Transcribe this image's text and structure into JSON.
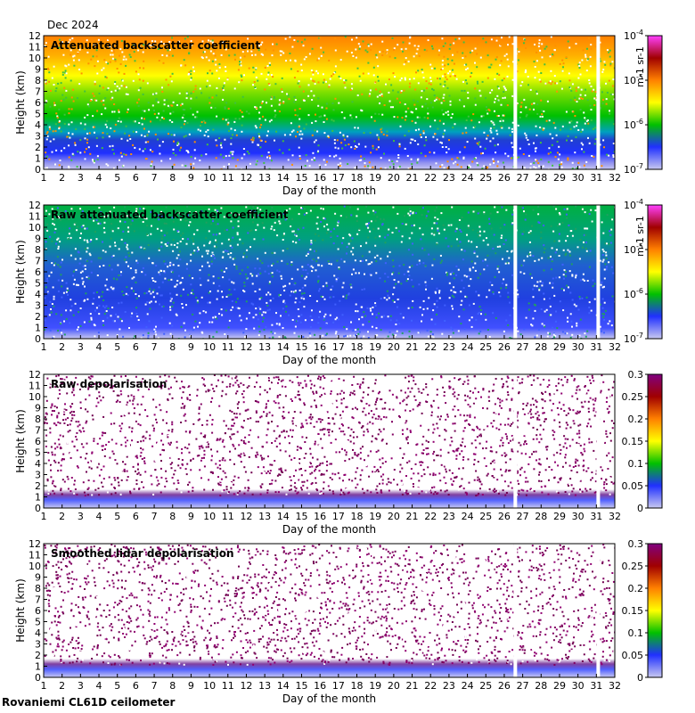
{
  "header": {
    "month_label": "Dec 2024"
  },
  "footer": {
    "instrument": "Rovaniemi CL61D ceilometer"
  },
  "colors": {
    "backscatter_scale": [
      "#c8c8f0",
      "#2030ff",
      "#00c000",
      "#ffff00",
      "#ff8000",
      "#a00000",
      "#ff40ff"
    ],
    "depol_scale": [
      "#c8c8f0",
      "#2030ff",
      "#00c000",
      "#ffff00",
      "#ff8000",
      "#a00000",
      "#800080"
    ]
  },
  "chart_data": [
    {
      "type": "heatmap",
      "title": "Attenuated backscatter coefficient",
      "xlabel": "Day of the month",
      "ylabel": "Height (km)",
      "xlim": [
        1,
        32
      ],
      "ylim": [
        0,
        12
      ],
      "x_ticks": [
        "1",
        "2",
        "3",
        "4",
        "5",
        "6",
        "7",
        "8",
        "9",
        "10",
        "11",
        "12",
        "13",
        "14",
        "15",
        "16",
        "17",
        "18",
        "19",
        "20",
        "21",
        "22",
        "23",
        "24",
        "25",
        "26",
        "27",
        "28",
        "29",
        "30",
        "31",
        "32"
      ],
      "y_ticks": [
        "0",
        "1",
        "2",
        "3",
        "4",
        "5",
        "6",
        "7",
        "8",
        "9",
        "10",
        "11",
        "12"
      ],
      "colorbar": {
        "scale": "log",
        "range": [
          1e-07,
          0.0001
        ],
        "ticks": [
          "10-7",
          "10-6",
          "10-5",
          "10-4"
        ],
        "units": "m-1 sr-1"
      },
      "data_gaps_days": [
        26.6,
        31.1
      ]
    },
    {
      "type": "heatmap",
      "title": "Raw attenuated backscatter coefficient",
      "xlabel": "Day of the month",
      "ylabel": "Height (km)",
      "xlim": [
        1,
        32
      ],
      "ylim": [
        0,
        12
      ],
      "x_ticks": [
        "1",
        "2",
        "3",
        "4",
        "5",
        "6",
        "7",
        "8",
        "9",
        "10",
        "11",
        "12",
        "13",
        "14",
        "15",
        "16",
        "17",
        "18",
        "19",
        "20",
        "21",
        "22",
        "23",
        "24",
        "25",
        "26",
        "27",
        "28",
        "29",
        "30",
        "31",
        "32"
      ],
      "y_ticks": [
        "0",
        "1",
        "2",
        "3",
        "4",
        "5",
        "6",
        "7",
        "8",
        "9",
        "10",
        "11",
        "12"
      ],
      "colorbar": {
        "scale": "log",
        "range": [
          1e-07,
          0.0001
        ],
        "ticks": [
          "10-7",
          "10-6",
          "10-5",
          "10-4"
        ],
        "units": "m-1 sr-1"
      },
      "data_gaps_days": [
        26.6,
        31.1
      ]
    },
    {
      "type": "heatmap",
      "title": "Raw depolarisation",
      "xlabel": "Day of the month",
      "ylabel": "Height (km)",
      "xlim": [
        1,
        32
      ],
      "ylim": [
        0,
        12
      ],
      "x_ticks": [
        "1",
        "2",
        "3",
        "4",
        "5",
        "6",
        "7",
        "8",
        "9",
        "10",
        "11",
        "12",
        "13",
        "14",
        "15",
        "16",
        "17",
        "18",
        "19",
        "20",
        "21",
        "22",
        "23",
        "24",
        "25",
        "26",
        "27",
        "28",
        "29",
        "30",
        "31",
        "32"
      ],
      "y_ticks": [
        "0",
        "1",
        "2",
        "3",
        "4",
        "5",
        "6",
        "7",
        "8",
        "9",
        "10",
        "11",
        "12"
      ],
      "colorbar": {
        "scale": "linear",
        "range": [
          0,
          0.3
        ],
        "ticks": [
          "0",
          "0.05",
          "0.1",
          "0.15",
          "0.2",
          "0.25",
          "0.3"
        ],
        "units": ""
      },
      "data_gaps_days": [
        26.6,
        31.1
      ]
    },
    {
      "type": "heatmap",
      "title": "Smoothed lidar depolarisation",
      "xlabel": "Day of the month",
      "ylabel": "Height (km)",
      "xlim": [
        1,
        32
      ],
      "ylim": [
        0,
        12
      ],
      "x_ticks": [
        "1",
        "2",
        "3",
        "4",
        "5",
        "6",
        "7",
        "8",
        "9",
        "10",
        "11",
        "12",
        "13",
        "14",
        "15",
        "16",
        "17",
        "18",
        "19",
        "20",
        "21",
        "22",
        "23",
        "24",
        "25",
        "26",
        "27",
        "28",
        "29",
        "30",
        "31",
        "32"
      ],
      "y_ticks": [
        "0",
        "1",
        "2",
        "3",
        "4",
        "5",
        "6",
        "7",
        "8",
        "9",
        "10",
        "11",
        "12"
      ],
      "colorbar": {
        "scale": "linear",
        "range": [
          0,
          0.3
        ],
        "ticks": [
          "0",
          "0.05",
          "0.1",
          "0.15",
          "0.2",
          "0.25",
          "0.3"
        ],
        "units": ""
      },
      "data_gaps_days": [
        26.6,
        31.1
      ]
    }
  ]
}
